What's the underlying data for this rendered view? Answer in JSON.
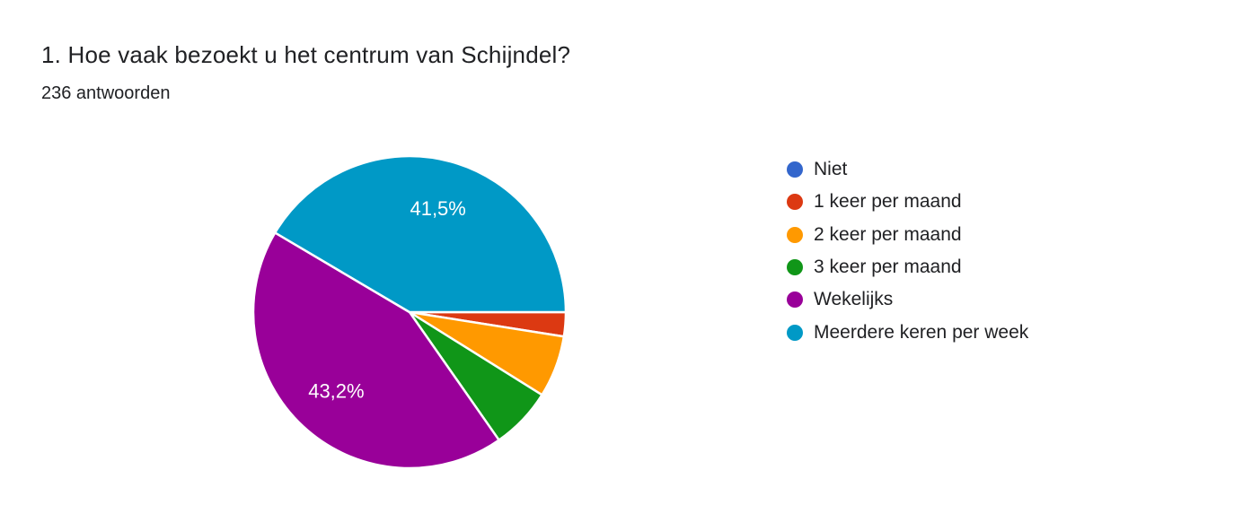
{
  "page": {
    "background": "#ffffff"
  },
  "header": {
    "title": "1. Hoe vaak bezoekt u het centrum van Schijndel?",
    "subtitle": "236 antwoorden"
  },
  "chart_data": {
    "type": "pie",
    "title": "1. Hoe vaak bezoekt u het centrum van Schijndel?",
    "subtitle": "236 antwoorden",
    "total_responses": 236,
    "legend_position": "right",
    "start_angle_deg": 0,
    "direction": "clockwise",
    "categories": [
      "Niet",
      "1 keer per maand",
      "2 keer per maand",
      "3 keer per maand",
      "Wekelijks",
      "Meerdere keren per week"
    ],
    "values_percent": [
      0,
      2.5,
      6.4,
      6.4,
      43.2,
      41.5
    ],
    "slice_labels": [
      "",
      "",
      "",
      "",
      "43,2%",
      "41,5%"
    ],
    "colors": [
      "#3366CC",
      "#DC3912",
      "#FF9900",
      "#109618",
      "#990099",
      "#0099C6"
    ],
    "label_color": "#ffffff",
    "divider_color": "#ffffff"
  }
}
